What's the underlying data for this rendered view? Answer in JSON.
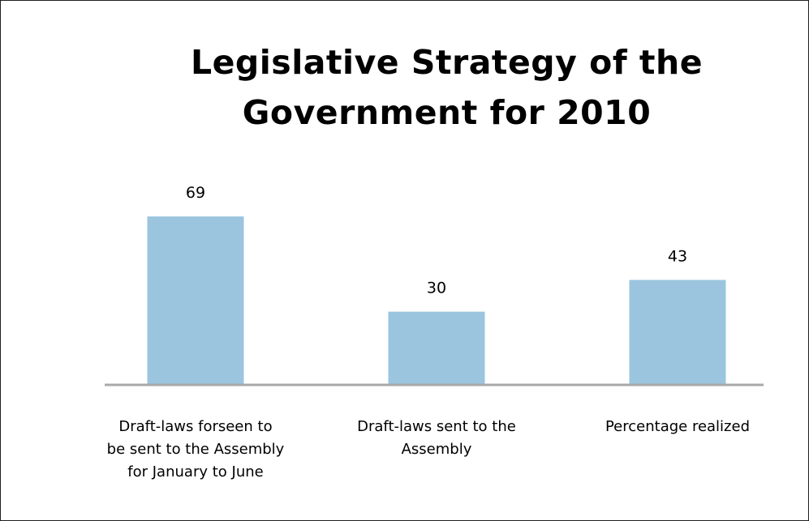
{
  "slide": {
    "title_line_1": "Legislative Strategy of the",
    "title_line_2": "Government for 2010"
  },
  "chart_data": {
    "type": "bar",
    "title": "Legislative Strategy of the Government for 2010",
    "categories": [
      "Draft-laws forseen to be sent to the Assembly for January to June",
      "Draft-laws sent to the Assembly",
      "Percentage realized"
    ],
    "category_lines": [
      [
        "Draft-laws forseen to",
        "be sent to the Assembly",
        "for January to June"
      ],
      [
        "Draft-laws sent to the",
        "Assembly"
      ],
      [
        "Percentage realized"
      ]
    ],
    "values": [
      69,
      30,
      43
    ],
    "data_labels": [
      "69",
      "30",
      "43"
    ],
    "ylim": [
      0,
      81
    ],
    "grid": false,
    "legend": "none",
    "colors": {
      "bar": "#9bc5de",
      "axis": "#a9a9a9",
      "text": "#000000"
    }
  }
}
